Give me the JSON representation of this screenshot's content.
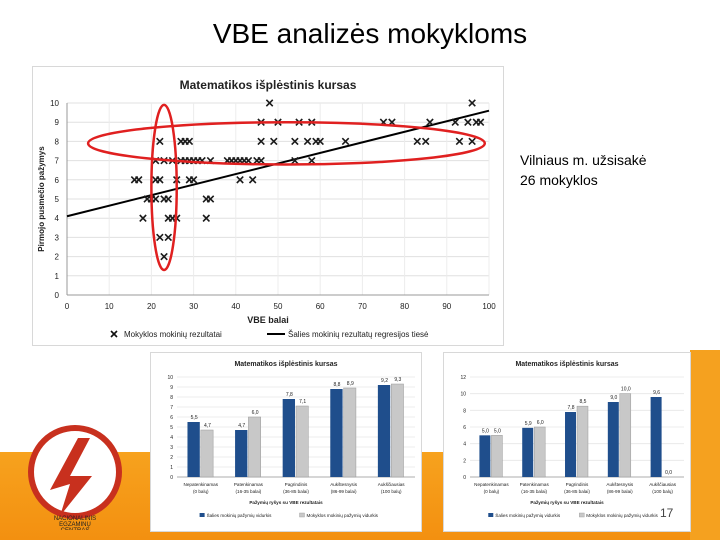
{
  "slide": {
    "title": "VBE analizės mokykloms",
    "note_line1": "Vilniaus m. užsisakė",
    "note_line2": "26 mokyklos",
    "page_number": "17",
    "logo_text": [
      "NACIONALINIS",
      "EGZAMINŲ",
      "CENTRAS"
    ]
  },
  "colors": {
    "orange": "#f39a1c",
    "scatter_marker": "#1a1a1a",
    "trend_line": "#000000",
    "ellipse": "#e02020",
    "bar_blue": "#1f4e8c",
    "bar_gray": "#c8c8c8"
  },
  "chart_data": [
    {
      "type": "scatter",
      "title": "Matematikos išplėstinis kursas",
      "xlabel": "VBE balai",
      "ylabel": "Pirmojo pusmečio pažymys",
      "xlim": [
        0,
        100
      ],
      "ylim": [
        0,
        10
      ],
      "xticks": [
        "0",
        "10",
        "20",
        "30",
        "40",
        "50",
        "60",
        "70",
        "80",
        "90",
        "100"
      ],
      "yticks": [
        "0",
        "1",
        "2",
        "3",
        "4",
        "5",
        "6",
        "7",
        "8",
        "9",
        "10"
      ],
      "legend": {
        "placement": "bottom",
        "markers": "Mokyklos mokinių rezultatai",
        "line": "Šalies mokinių rezultatų regresijos tiesė"
      },
      "trend": [
        [
          0,
          4.1
        ],
        [
          100,
          9.6
        ]
      ],
      "points": [
        [
          16,
          6
        ],
        [
          17,
          6
        ],
        [
          18,
          4
        ],
        [
          19,
          5
        ],
        [
          20,
          5
        ],
        [
          21,
          7
        ],
        [
          21,
          6
        ],
        [
          21,
          5
        ],
        [
          22,
          8
        ],
        [
          22,
          3
        ],
        [
          22,
          6
        ],
        [
          23,
          2
        ],
        [
          23,
          7
        ],
        [
          23,
          5
        ],
        [
          24,
          4
        ],
        [
          24,
          3
        ],
        [
          24,
          5
        ],
        [
          25,
          4
        ],
        [
          25,
          7
        ],
        [
          26,
          4
        ],
        [
          26,
          6
        ],
        [
          27,
          8
        ],
        [
          27,
          7
        ],
        [
          28,
          7
        ],
        [
          28,
          8
        ],
        [
          29,
          6
        ],
        [
          29,
          7
        ],
        [
          29,
          8
        ],
        [
          30,
          7
        ],
        [
          30,
          6
        ],
        [
          31,
          7
        ],
        [
          32,
          7
        ],
        [
          33,
          5
        ],
        [
          33,
          4
        ],
        [
          34,
          5
        ],
        [
          34,
          7
        ],
        [
          38,
          7
        ],
        [
          39,
          7
        ],
        [
          40,
          7
        ],
        [
          41,
          6
        ],
        [
          41,
          7
        ],
        [
          42,
          7
        ],
        [
          43,
          7
        ],
        [
          44,
          6
        ],
        [
          45,
          7
        ],
        [
          46,
          7
        ],
        [
          46,
          8
        ],
        [
          46,
          9
        ],
        [
          48,
          10
        ],
        [
          49,
          8
        ],
        [
          50,
          9
        ],
        [
          54,
          8
        ],
        [
          54,
          7
        ],
        [
          55,
          9
        ],
        [
          57,
          8
        ],
        [
          58,
          9
        ],
        [
          58,
          7
        ],
        [
          59,
          8
        ],
        [
          60,
          8
        ],
        [
          66,
          8
        ],
        [
          75,
          9
        ],
        [
          77,
          9
        ],
        [
          83,
          8
        ],
        [
          85,
          8
        ],
        [
          86,
          9
        ],
        [
          92,
          9
        ],
        [
          93,
          8
        ],
        [
          95,
          9
        ],
        [
          96,
          8
        ],
        [
          96,
          10
        ],
        [
          97,
          9
        ],
        [
          98,
          9
        ]
      ],
      "ellipses": [
        {
          "cx": 52,
          "cy": 7.9,
          "rx": 47,
          "ry": 1.1
        },
        {
          "cx": 23,
          "cy": 5.6,
          "rx": 3,
          "ry": 4.3
        }
      ]
    },
    {
      "type": "bar",
      "title": "Matematikos išplėstinis kursas",
      "categories": [
        "Nepatenkinamas (0 balų)",
        "Patenkinamas (16-35 balai)",
        "Pagrindinis (36-85 balai)",
        "Aukštesnysis (86-99 balai)",
        "Aukščiausias (100 balų)"
      ],
      "ylim": [
        0,
        10
      ],
      "yticks": [
        "0",
        "1",
        "2",
        "3",
        "4",
        "5",
        "6",
        "7",
        "8",
        "9",
        "10"
      ],
      "series": [
        {
          "name": "Šalies mokinių pažymių vidurkis",
          "values": [
            5.5,
            4.7,
            7.8,
            8.8,
            9.2
          ],
          "labels": [
            "5,5",
            "4,7",
            "7,8",
            "8,8",
            "9,2"
          ]
        },
        {
          "name": "Mokyklos mokinių pažymių vidurkis",
          "values": [
            4.7,
            6.0,
            7.1,
            8.9,
            9.3
          ],
          "labels": [
            "4,7",
            "6,0",
            "7,1",
            "8,9",
            "9,3"
          ]
        }
      ],
      "xlabel": "Pažymių ryšys su VBE rezultatais"
    },
    {
      "type": "bar",
      "title": "Matematikos išplėstinis kursas",
      "categories": [
        "Nepatenkinamas (0 balų)",
        "Patenkinamas (16-35 balai)",
        "Pagrindinis (36-85 balai)",
        "Aukštesnysis (86-99 balai)",
        "Aukščiausias (100 balų)"
      ],
      "ylim": [
        0,
        12
      ],
      "yticks": [
        "0",
        "2",
        "4",
        "6",
        "8",
        "10",
        "12"
      ],
      "series": [
        {
          "name": "Šalies mokinių pažymių vidurkis",
          "values": [
            5.0,
            5.9,
            7.8,
            9.0,
            9.6
          ],
          "labels": [
            "5,0",
            "5,9",
            "7,8",
            "9,0",
            "9,6"
          ]
        },
        {
          "name": "Mokyklos mokinių pažymių vidurkis",
          "values": [
            5.0,
            6.0,
            8.5,
            10.0,
            0.0
          ],
          "labels": [
            "5,0",
            "6,0",
            "8,5",
            "10,0",
            "0,0"
          ]
        }
      ],
      "xlabel": "Pažymių ryšys su VBE rezultatais"
    }
  ]
}
